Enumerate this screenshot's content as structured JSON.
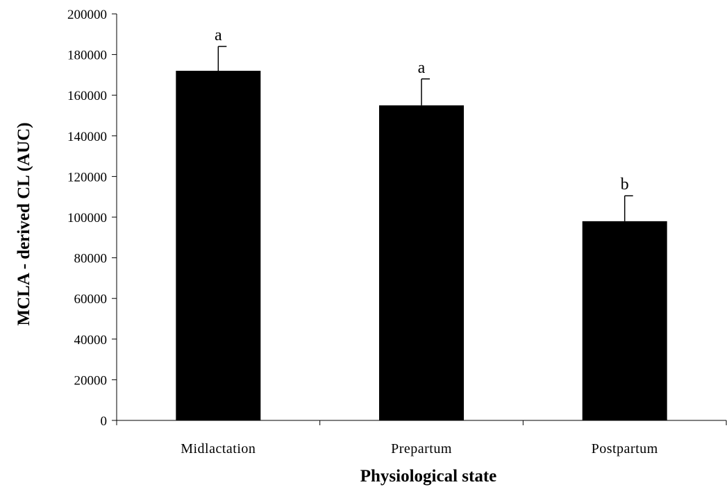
{
  "chart_data": {
    "type": "bar",
    "title": "",
    "xlabel": "Physiological state",
    "ylabel": "MCLA - derived CL (AUC)",
    "categories": [
      "Midlactation",
      "Prepartum",
      "Postpartum"
    ],
    "values": [
      172000,
      155000,
      98000
    ],
    "error_upper": [
      184000,
      168000,
      110500
    ],
    "significance_labels": [
      "a",
      "a",
      "b"
    ],
    "ylim": [
      0,
      200000
    ],
    "yticks": [
      0,
      20000,
      40000,
      60000,
      80000,
      100000,
      120000,
      140000,
      160000,
      180000,
      200000
    ],
    "grid": false,
    "legend": "none",
    "bar_color": "#000000"
  }
}
